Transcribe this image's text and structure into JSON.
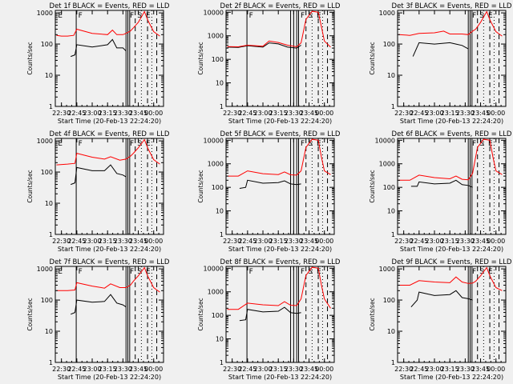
{
  "figure": {
    "background": "#f0f0f0",
    "colors": {
      "events": "#000000",
      "lld": "#ff0000",
      "axes": "#000000"
    }
  },
  "chart_data": [
    {
      "panel": "1",
      "title": "Det 1f BLACK = Events, RED = LLD",
      "type": "line",
      "scale": "log",
      "ylim": [
        1,
        1200
      ],
      "yticks": [
        "1",
        "10",
        "100",
        "1000"
      ],
      "xticks": [
        "22:30",
        "22:45",
        "23:00",
        "23:15",
        "23:30",
        "23:45",
        "00:00"
      ],
      "xlabel": "Start Time (20-Feb-13 22:24:20)",
      "ylabel": "Counts/sec",
      "series": [
        {
          "name": "Events",
          "color": "#000000",
          "x": [
            22.65,
            22.72,
            22.75,
            23.0,
            23.25,
            23.33,
            23.4,
            23.5,
            23.55,
            23.6
          ],
          "y": [
            40,
            45,
            95,
            80,
            95,
            140,
            75,
            75,
            60,
            null
          ]
        },
        {
          "name": "LLD",
          "color": "#ff0000",
          "x": [
            22.42,
            22.5,
            22.6,
            22.7,
            22.75,
            23.0,
            23.25,
            23.33,
            23.4,
            23.5,
            23.55,
            23.62,
            23.67,
            23.75,
            23.85,
            23.9,
            24.0,
            24.1
          ],
          "y": [
            190,
            180,
            180,
            190,
            300,
            220,
            200,
            280,
            200,
            200,
            220,
            260,
            330,
            500,
            1100,
            600,
            250,
            180
          ]
        }
      ],
      "markers": {
        "solid": [
          22.74,
          23.55,
          23.58,
          23.61
        ],
        "dashed": [
          23.7,
          23.9,
          24.05
        ],
        "dotted": [
          23.8,
          23.97
        ]
      },
      "region_labels": [
        "E",
        "F",
        "F",
        "S",
        "E"
      ]
    },
    {
      "panel": "2",
      "title": "Det 2f BLACK = Events, RED = LLD",
      "type": "line",
      "scale": "log",
      "ylim": [
        1,
        12000
      ],
      "yticks": [
        "1",
        "10",
        "100",
        "1000",
        "10000"
      ],
      "xticks": [
        "22:30",
        "22:45",
        "23:00",
        "23:15",
        "23:30",
        "23:45",
        "00:00"
      ],
      "xlabel": "Start Time (20-Feb-13 22:24:20)",
      "ylabel": "Counts/sec",
      "series": [
        {
          "name": "Events",
          "color": "#000000",
          "x": [
            22.42,
            22.6,
            22.75,
            23.0,
            23.1,
            23.25,
            23.4,
            23.55,
            23.62
          ],
          "y": [
            330,
            320,
            380,
            330,
            500,
            450,
            330,
            300,
            400
          ]
        },
        {
          "name": "LLD",
          "color": "#ff0000",
          "x": [
            22.42,
            22.6,
            22.75,
            23.0,
            23.1,
            23.25,
            23.4,
            23.55,
            23.62,
            23.7,
            23.8,
            23.9,
            23.95,
            24.0,
            24.1
          ],
          "y": [
            350,
            340,
            400,
            360,
            600,
            520,
            400,
            340,
            500,
            5000,
            11000,
            10000,
            2500,
            600,
            330
          ]
        }
      ],
      "markers": {
        "solid": [
          22.74,
          23.45,
          23.5,
          23.55,
          23.58
        ],
        "dashed": [
          23.7,
          23.9,
          24.05
        ],
        "dotted": [
          23.8,
          23.97
        ]
      },
      "region_labels": [
        "F",
        "F",
        "S",
        "E"
      ]
    },
    {
      "panel": "3",
      "title": "Det 3f BLACK = Events, RED = LLD",
      "type": "line",
      "scale": "log",
      "ylim": [
        1,
        1200
      ],
      "yticks": [
        "1",
        "10",
        "100",
        "1000"
      ],
      "xticks": [
        "22:30",
        "22:45",
        "23:00",
        "23:15",
        "23:30",
        "23:45",
        "00:00"
      ],
      "xlabel": "Start Time (20-Feb-13 22:24:20)",
      "ylabel": "Counts/sec",
      "series": [
        {
          "name": "Events",
          "color": "#000000",
          "x": [
            22.65,
            22.75,
            23.0,
            23.25,
            23.35,
            23.45,
            23.55,
            23.62
          ],
          "y": [
            40,
            110,
            100,
            110,
            100,
            90,
            70,
            null
          ]
        },
        {
          "name": "LLD",
          "color": "#ff0000",
          "x": [
            22.42,
            22.6,
            22.75,
            23.0,
            23.15,
            23.25,
            23.45,
            23.55,
            23.62,
            23.67,
            23.75,
            23.85,
            23.9,
            24.0,
            24.1
          ],
          "y": [
            200,
            190,
            220,
            230,
            260,
            210,
            210,
            200,
            260,
            300,
            500,
            1100,
            600,
            250,
            180
          ]
        }
      ],
      "markers": {
        "solid": [
          23.55,
          23.58,
          23.61
        ],
        "dashed": [
          23.7,
          23.9,
          24.05
        ],
        "dotted": [
          23.8,
          23.97
        ]
      },
      "region_labels": [
        "F",
        "S",
        "E"
      ]
    },
    {
      "panel": "4",
      "title": "Det 4f BLACK = Events, RED = LLD",
      "type": "line",
      "scale": "log",
      "ylim": [
        1,
        1200
      ],
      "yticks": [
        "1",
        "10",
        "100",
        "1000"
      ],
      "xticks": [
        "22:30",
        "22:45",
        "23:00",
        "23:15",
        "23:30",
        "23:45",
        "00:00"
      ],
      "xlabel": "Start Time (20-Feb-13 22:24:20)",
      "ylabel": "Counts/sec",
      "series": [
        {
          "name": "Events",
          "color": "#000000",
          "x": [
            22.65,
            22.72,
            22.75,
            23.0,
            23.2,
            23.3,
            23.4,
            23.5,
            23.55,
            23.6
          ],
          "y": [
            40,
            45,
            140,
            110,
            110,
            170,
            90,
            80,
            70,
            null
          ]
        },
        {
          "name": "LLD",
          "color": "#ff0000",
          "x": [
            22.42,
            22.6,
            22.72,
            22.75,
            23.0,
            23.2,
            23.3,
            23.45,
            23.55,
            23.62,
            23.67,
            23.75,
            23.85,
            23.9,
            24.0,
            24.1
          ],
          "y": [
            170,
            180,
            190,
            400,
            300,
            260,
            310,
            240,
            260,
            320,
            400,
            600,
            1100,
            600,
            250,
            180
          ]
        }
      ],
      "markers": {
        "solid": [
          22.74,
          23.55,
          23.58,
          23.61
        ],
        "dashed": [
          23.7,
          23.9,
          24.05
        ],
        "dotted": [
          23.8,
          23.97
        ]
      },
      "region_labels": [
        "E",
        "F",
        "F",
        "S",
        "E"
      ]
    },
    {
      "panel": "5",
      "title": "Det 5f BLACK = Events, RED = LLD",
      "type": "line",
      "scale": "log",
      "ylim": [
        1,
        12000
      ],
      "yticks": [
        "1",
        "10",
        "100",
        "1000",
        "10000"
      ],
      "xticks": [
        "22:30",
        "22:45",
        "23:00",
        "23:15",
        "23:30",
        "23:45",
        "00:00"
      ],
      "xlabel": "Start Time (20-Feb-13 22:24:20)",
      "ylabel": "Counts/sec",
      "series": [
        {
          "name": "Events",
          "color": "#000000",
          "x": [
            22.62,
            22.72,
            22.75,
            23.0,
            23.25,
            23.35,
            23.45,
            23.55,
            23.62
          ],
          "y": [
            90,
            100,
            200,
            150,
            160,
            190,
            140,
            130,
            140
          ]
        },
        {
          "name": "LLD",
          "color": "#ff0000",
          "x": [
            22.42,
            22.6,
            22.75,
            23.0,
            23.25,
            23.35,
            23.45,
            23.55,
            23.62,
            23.7,
            23.8,
            23.9,
            23.95,
            24.0,
            24.1
          ],
          "y": [
            300,
            300,
            500,
            380,
            350,
            450,
            340,
            330,
            500,
            5000,
            11000,
            10000,
            2000,
            500,
            350
          ]
        }
      ],
      "markers": {
        "solid": [
          23.45,
          23.5,
          23.55,
          23.58
        ],
        "dashed": [
          23.7,
          23.9,
          24.05
        ],
        "dotted": [
          23.8,
          23.97
        ]
      },
      "region_labels": [
        "F",
        "S",
        "E"
      ]
    },
    {
      "panel": "6",
      "title": "Det 6f BLACK = Events, RED = LLD",
      "type": "line",
      "scale": "log",
      "ylim": [
        1,
        12000
      ],
      "yticks": [
        "1",
        "10",
        "100",
        "1000",
        "10000"
      ],
      "xticks": [
        "22:30",
        "22:45",
        "23:00",
        "23:15",
        "23:30",
        "23:45",
        "00:00"
      ],
      "xlabel": "Start Time (20-Feb-13 22:24:20)",
      "ylabel": "Counts/sec",
      "series": [
        {
          "name": "Events",
          "color": "#000000",
          "x": [
            22.62,
            22.72,
            22.75,
            23.0,
            23.25,
            23.35,
            23.45,
            23.55,
            23.62
          ],
          "y": [
            110,
            110,
            170,
            140,
            150,
            200,
            130,
            120,
            100
          ]
        },
        {
          "name": "LLD",
          "color": "#ff0000",
          "x": [
            22.42,
            22.6,
            22.75,
            23.0,
            23.25,
            23.35,
            23.45,
            23.55,
            23.62,
            23.7,
            23.8,
            23.9,
            23.95,
            24.0,
            24.1
          ],
          "y": [
            200,
            200,
            330,
            260,
            230,
            300,
            220,
            210,
            400,
            5000,
            11000,
            10000,
            2000,
            500,
            350
          ]
        }
      ],
      "markers": {
        "solid": [
          23.55,
          23.58,
          23.61
        ],
        "dashed": [
          23.7,
          23.9,
          24.05
        ],
        "dotted": [
          23.8,
          23.97
        ]
      },
      "region_labels": [
        "F",
        "S",
        "E"
      ]
    },
    {
      "panel": "7",
      "title": "Det 7f BLACK = Events, RED = LLD",
      "type": "line",
      "scale": "log",
      "ylim": [
        1,
        1200
      ],
      "yticks": [
        "1",
        "10",
        "100",
        "1000"
      ],
      "xticks": [
        "22:30",
        "22:45",
        "23:00",
        "23:15",
        "23:30",
        "23:45",
        "00:00"
      ],
      "xlabel": "Start Time (20-Feb-13 22:24:20)",
      "ylabel": "Counts/sec",
      "series": [
        {
          "name": "Events",
          "color": "#000000",
          "x": [
            22.65,
            22.72,
            22.75,
            23.0,
            23.2,
            23.3,
            23.4,
            23.5,
            23.55,
            23.6
          ],
          "y": [
            35,
            40,
            100,
            85,
            90,
            150,
            80,
            70,
            60,
            null
          ]
        },
        {
          "name": "LLD",
          "color": "#ff0000",
          "x": [
            22.42,
            22.6,
            22.72,
            22.75,
            23.0,
            23.2,
            23.3,
            23.45,
            23.55,
            23.62,
            23.67,
            23.75,
            23.85,
            23.9,
            24.0,
            24.1
          ],
          "y": [
            200,
            200,
            210,
            360,
            280,
            240,
            330,
            250,
            250,
            300,
            400,
            600,
            1100,
            600,
            250,
            180
          ]
        }
      ],
      "markers": {
        "solid": [
          22.74,
          23.55,
          23.58,
          23.61
        ],
        "dashed": [
          23.7,
          23.9,
          24.05
        ],
        "dotted": [
          23.8,
          23.97
        ]
      },
      "region_labels": [
        "E",
        "F",
        "F",
        "S",
        "E"
      ]
    },
    {
      "panel": "8",
      "title": "Det 8f BLACK = Events, RED = LLD",
      "type": "line",
      "scale": "log",
      "ylim": [
        1,
        12000
      ],
      "yticks": [
        "1",
        "10",
        "100",
        "1000",
        "10000"
      ],
      "xticks": [
        "22:30",
        "22:45",
        "23:00",
        "23:15",
        "23:30",
        "23:45",
        "00:00"
      ],
      "xlabel": "Start Time (20-Feb-13 22:24:20)",
      "ylabel": "Counts/sec",
      "series": [
        {
          "name": "Events",
          "color": "#000000",
          "x": [
            22.62,
            22.72,
            22.75,
            23.0,
            23.25,
            23.35,
            23.45,
            23.55,
            23.62
          ],
          "y": [
            60,
            65,
            180,
            140,
            150,
            220,
            130,
            120,
            130
          ]
        },
        {
          "name": "LLD",
          "color": "#ff0000",
          "x": [
            22.42,
            22.6,
            22.75,
            23.0,
            23.25,
            23.35,
            23.45,
            23.55,
            23.62,
            23.7,
            23.8,
            23.9,
            23.95,
            24.0,
            24.1
          ],
          "y": [
            180,
            180,
            330,
            280,
            260,
            380,
            270,
            260,
            500,
            5000,
            11000,
            10000,
            2000,
            500,
            200
          ]
        }
      ],
      "markers": {
        "solid": [
          22.74,
          23.45,
          23.5,
          23.55,
          23.58
        ],
        "dashed": [
          23.7,
          23.9,
          24.05
        ],
        "dotted": [
          23.8,
          23.97
        ]
      },
      "region_labels": [
        "F",
        "F",
        "S",
        "E"
      ]
    },
    {
      "panel": "9",
      "title": "Det 9f BLACK = Events, RED = LLD",
      "type": "line",
      "scale": "log",
      "ylim": [
        1,
        1200
      ],
      "yticks": [
        "1",
        "10",
        "100",
        "1000"
      ],
      "xticks": [
        "22:30",
        "22:45",
        "23:00",
        "23:15",
        "23:30",
        "23:45",
        "00:00"
      ],
      "xlabel": "Start Time (20-Feb-13 22:24:20)",
      "ylabel": "Counts/sec",
      "series": [
        {
          "name": "Events",
          "color": "#000000",
          "x": [
            22.62,
            22.72,
            22.75,
            23.0,
            23.25,
            23.35,
            23.45,
            23.55,
            23.62
          ],
          "y": [
            60,
            100,
            180,
            140,
            150,
            200,
            120,
            110,
            100
          ]
        },
        {
          "name": "LLD",
          "color": "#ff0000",
          "x": [
            22.42,
            22.6,
            22.75,
            23.0,
            23.25,
            23.35,
            23.45,
            23.55,
            23.62,
            23.67,
            23.75,
            23.85,
            23.9,
            24.0,
            24.1
          ],
          "y": [
            300,
            300,
            420,
            380,
            360,
            550,
            380,
            340,
            350,
            400,
            600,
            1100,
            600,
            250,
            200
          ]
        }
      ],
      "markers": {
        "solid": [
          23.55,
          23.58,
          23.61
        ],
        "dashed": [
          23.7,
          23.9,
          24.05
        ],
        "dotted": [
          23.8,
          23.97
        ]
      },
      "region_labels": [
        "F",
        "S",
        "E"
      ]
    }
  ]
}
